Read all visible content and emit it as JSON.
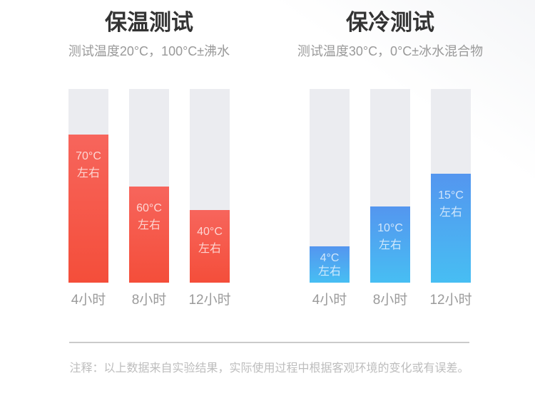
{
  "chart_data": [
    {
      "type": "bar",
      "title": "保温测试",
      "subtitle": "测试温度20°C，100°C±沸水",
      "categories": [
        "4小时",
        "8小时",
        "12小时"
      ],
      "values": [
        70,
        60,
        40
      ],
      "unit": "°C",
      "bar_labels": [
        [
          "70°C",
          "左右"
        ],
        [
          "60°C",
          "左右"
        ],
        [
          "40°C",
          "左右"
        ]
      ],
      "fill_percent": [
        76.5,
        49.6,
        37.5
      ],
      "grid": false,
      "legend": false,
      "colors": {
        "bar_top": "#f7655c",
        "bar_bottom": "#f44e3a",
        "track": "#ebecf0",
        "bar_label_text": "rgba(255,255,255,0.74)"
      }
    },
    {
      "type": "bar",
      "title": "保冷测试",
      "subtitle": "测试温度30°C，0°C±冰水混合物",
      "categories": [
        "4小时",
        "8小时",
        "12小时"
      ],
      "values": [
        4,
        10,
        15
      ],
      "unit": "°C",
      "bar_labels": [
        [
          "4°C",
          "左右"
        ],
        [
          "10°C",
          "左右"
        ],
        [
          "15°C",
          "左右"
        ]
      ],
      "fill_percent": [
        18.8,
        39.3,
        56.3
      ],
      "grid": false,
      "legend": false,
      "colors": {
        "bar_top": "#5496ef",
        "bar_bottom": "#47bef3",
        "track": "#ebecf0",
        "bar_label_text": "rgba(255,255,255,0.74)"
      }
    }
  ],
  "footnote": "注释：以上数据来自实验结果，实际使用过程中根据客观环境的变化或有误差。",
  "palette": {
    "title_text": "#333333",
    "subtitle_text": "#999999",
    "category_text": "#9b9b9b",
    "footnote_text": "#bdbdbd",
    "divider": "#cbcbcb",
    "background": "#ffffff"
  }
}
